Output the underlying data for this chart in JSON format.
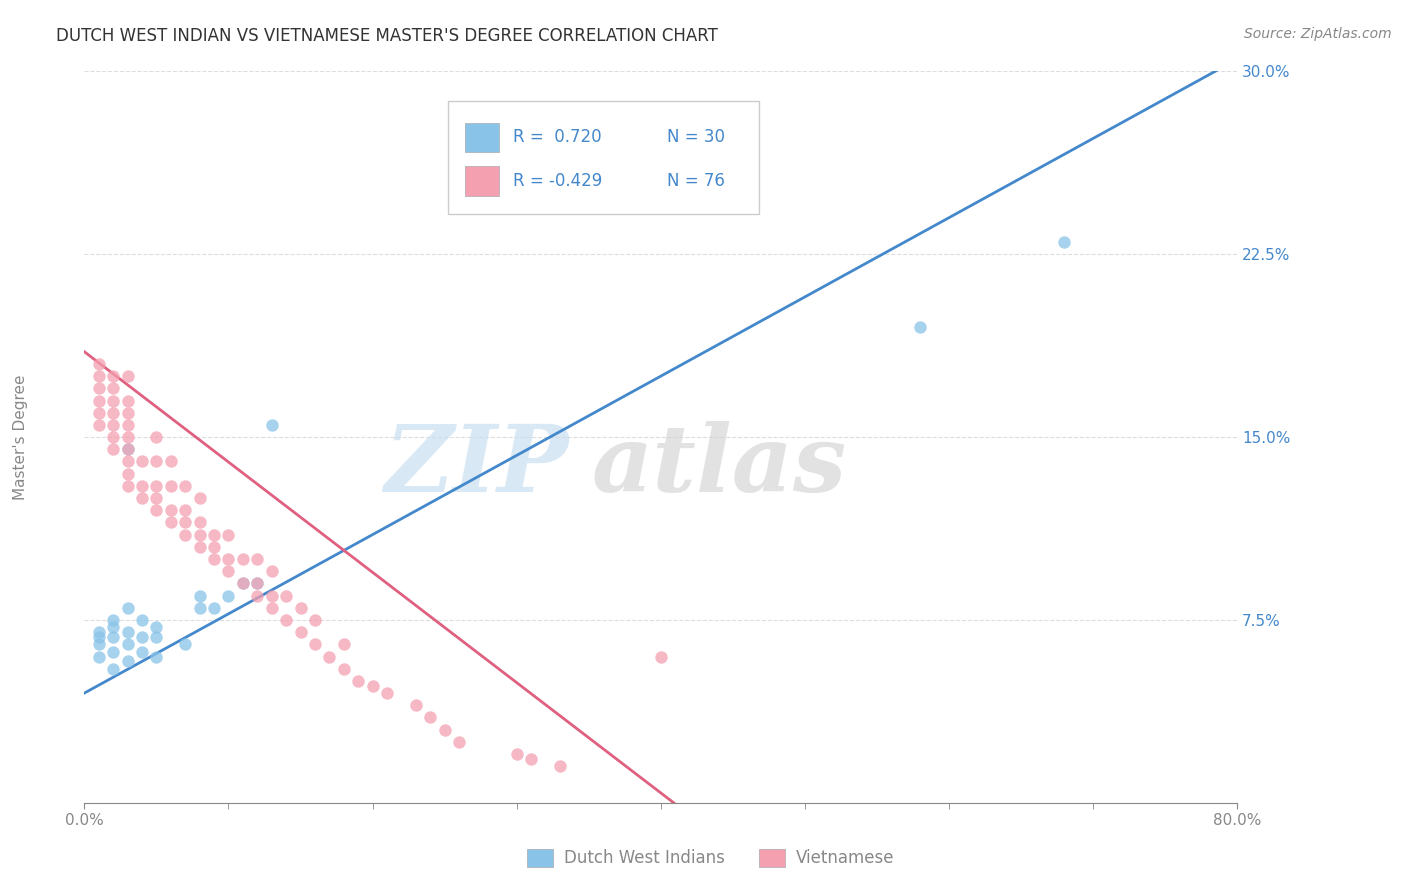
{
  "title": "DUTCH WEST INDIAN VS VIETNAMESE MASTER'S DEGREE CORRELATION CHART",
  "source": "Source: ZipAtlas.com",
  "ylabel": "Master's Degree",
  "xmin": 0.0,
  "xmax": 0.08,
  "ymin": 0.0,
  "ymax": 0.3,
  "yticks": [
    0.075,
    0.15,
    0.225,
    0.3
  ],
  "ytick_labels": [
    "7.5%",
    "15.0%",
    "22.5%",
    "30.0%"
  ],
  "r_blue": 0.72,
  "n_blue": 30,
  "r_pink": -0.429,
  "n_pink": 76,
  "blue_color": "#89c4e8",
  "pink_color": "#f4a0b0",
  "trendline_blue_color": "#4488cc",
  "trendline_pink_color": "#e06080",
  "legend_label_blue": "Dutch West Indians",
  "legend_label_pink": "Vietnamese",
  "tick_color": "#4488cc",
  "axis_color": "#888888",
  "title_color": "#333333",
  "grid_color": "#dddddd",
  "background_color": "#ffffff",
  "title_fontsize": 12,
  "tick_fontsize": 11,
  "source_fontsize": 10,
  "legend_fontsize": 12,
  "blue_trend_x0": 0.0,
  "blue_trend_x1": 0.08,
  "blue_trend_y0": 0.045,
  "blue_trend_y1": 0.305,
  "pink_trend_x0": 0.0,
  "pink_trend_x1": 0.042,
  "pink_trend_y0": 0.185,
  "pink_trend_y1": -0.005,
  "blue_scatter_x": [
    0.001,
    0.001,
    0.001,
    0.001,
    0.002,
    0.002,
    0.002,
    0.002,
    0.002,
    0.003,
    0.003,
    0.003,
    0.003,
    0.003,
    0.004,
    0.004,
    0.004,
    0.005,
    0.005,
    0.005,
    0.007,
    0.008,
    0.008,
    0.009,
    0.01,
    0.011,
    0.012,
    0.013,
    0.058,
    0.068
  ],
  "blue_scatter_y": [
    0.06,
    0.065,
    0.068,
    0.07,
    0.055,
    0.062,
    0.068,
    0.072,
    0.075,
    0.058,
    0.065,
    0.07,
    0.145,
    0.08,
    0.062,
    0.068,
    0.075,
    0.06,
    0.068,
    0.072,
    0.065,
    0.08,
    0.085,
    0.08,
    0.085,
    0.09,
    0.09,
    0.155,
    0.195,
    0.23
  ],
  "pink_scatter_x": [
    0.001,
    0.001,
    0.001,
    0.001,
    0.001,
    0.001,
    0.002,
    0.002,
    0.002,
    0.002,
    0.002,
    0.002,
    0.002,
    0.003,
    0.003,
    0.003,
    0.003,
    0.003,
    0.003,
    0.003,
    0.003,
    0.003,
    0.004,
    0.004,
    0.004,
    0.005,
    0.005,
    0.005,
    0.005,
    0.005,
    0.006,
    0.006,
    0.006,
    0.006,
    0.007,
    0.007,
    0.007,
    0.007,
    0.008,
    0.008,
    0.008,
    0.008,
    0.009,
    0.009,
    0.009,
    0.01,
    0.01,
    0.01,
    0.011,
    0.011,
    0.012,
    0.012,
    0.012,
    0.013,
    0.013,
    0.013,
    0.014,
    0.014,
    0.015,
    0.015,
    0.016,
    0.016,
    0.017,
    0.018,
    0.018,
    0.019,
    0.02,
    0.021,
    0.023,
    0.024,
    0.025,
    0.026,
    0.03,
    0.031,
    0.033,
    0.04
  ],
  "pink_scatter_y": [
    0.155,
    0.16,
    0.165,
    0.17,
    0.175,
    0.18,
    0.145,
    0.15,
    0.155,
    0.16,
    0.165,
    0.17,
    0.175,
    0.13,
    0.135,
    0.14,
    0.145,
    0.15,
    0.155,
    0.16,
    0.165,
    0.175,
    0.125,
    0.13,
    0.14,
    0.12,
    0.125,
    0.13,
    0.14,
    0.15,
    0.115,
    0.12,
    0.13,
    0.14,
    0.11,
    0.115,
    0.12,
    0.13,
    0.105,
    0.11,
    0.115,
    0.125,
    0.1,
    0.105,
    0.11,
    0.095,
    0.1,
    0.11,
    0.09,
    0.1,
    0.085,
    0.09,
    0.1,
    0.08,
    0.085,
    0.095,
    0.075,
    0.085,
    0.07,
    0.08,
    0.065,
    0.075,
    0.06,
    0.055,
    0.065,
    0.05,
    0.048,
    0.045,
    0.04,
    0.035,
    0.03,
    0.025,
    0.02,
    0.018,
    0.015,
    0.06
  ]
}
